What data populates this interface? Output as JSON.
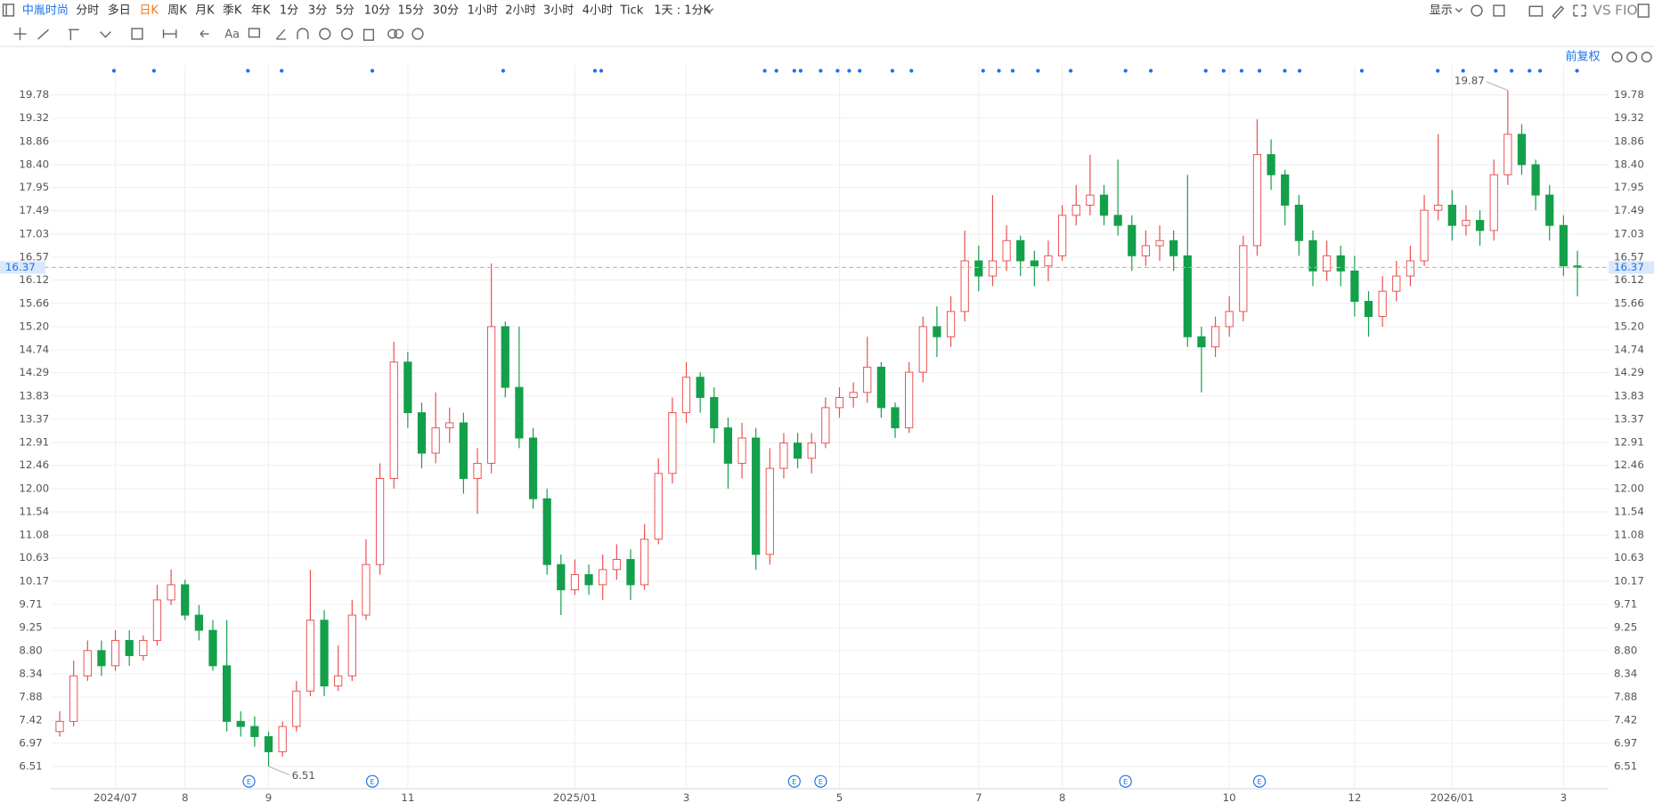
{
  "toolbar": {
    "symbol": "中胤时尚",
    "periods": [
      "分时",
      "多日",
      "日K",
      "周K",
      "月K",
      "季K",
      "年K",
      "1分",
      "3分",
      "5分",
      "10分",
      "15分",
      "30分",
      "1小时",
      "2小时",
      "3小时",
      "4小时",
      "Tick",
      "1天 : 1分K"
    ],
    "active_index": 2,
    "display": "显示",
    "compare": "VS",
    "font_tool": "Aa",
    "adjust": "前复权",
    "event_badge": "E"
  },
  "chart_data": {
    "type": "candlestick",
    "categories": [
      null,
      null,
      null,
      null,
      "2024/07",
      null,
      null,
      null,
      null,
      "8",
      null,
      null,
      null,
      null,
      null,
      "9",
      null,
      null,
      null,
      null,
      null,
      null,
      null,
      null,
      null,
      "11",
      null,
      null,
      null,
      null,
      null,
      null,
      null,
      null,
      null,
      null,
      null,
      "2025/01",
      null,
      null,
      null,
      null,
      null,
      null,
      null,
      "3",
      null,
      null,
      null,
      null,
      null,
      null,
      null,
      null,
      null,
      null,
      "5",
      null,
      null,
      null,
      null,
      null,
      null,
      null,
      null,
      null,
      "7",
      null,
      null,
      null,
      null,
      null,
      "8",
      null,
      null,
      null,
      null,
      null,
      null,
      null,
      null,
      null,
      null,
      null,
      "10",
      null,
      null,
      null,
      null,
      null,
      null,
      null,
      null,
      "12",
      null,
      null,
      null,
      null,
      null,
      null,
      "2026/01",
      null,
      null,
      null,
      null,
      null,
      null,
      null,
      "3",
      null
    ],
    "open": [
      7.2,
      7.4,
      8.3,
      8.8,
      8.5,
      9.0,
      8.7,
      9.0,
      9.8,
      10.1,
      9.5,
      9.2,
      8.5,
      7.4,
      7.3,
      7.1,
      6.8,
      7.3,
      8.0,
      9.4,
      8.1,
      8.3,
      9.5,
      10.5,
      12.2,
      14.5,
      13.5,
      12.7,
      13.2,
      13.3,
      12.2,
      12.5,
      15.2,
      14.0,
      13.0,
      11.8,
      10.5,
      10.0,
      10.3,
      10.1,
      10.4,
      10.6,
      10.1,
      11.0,
      12.3,
      13.5,
      14.2,
      13.8,
      13.2,
      12.5,
      13.0,
      10.7,
      12.4,
      12.9,
      12.6,
      12.9,
      13.6,
      13.8,
      13.9,
      14.4,
      13.6,
      13.2,
      14.3,
      15.2,
      15.0,
      15.5,
      16.5,
      16.2,
      16.5,
      16.9,
      16.5,
      16.4,
      16.6,
      17.4,
      17.6,
      17.8,
      17.4,
      17.2,
      16.6,
      16.8,
      16.9,
      16.6,
      15.0,
      14.8,
      15.2,
      15.5,
      16.8,
      18.6,
      18.2,
      17.6,
      16.9,
      16.3,
      16.6,
      16.3,
      15.7,
      15.4,
      15.9,
      16.2,
      16.5,
      17.5,
      17.6,
      17.2,
      17.3,
      17.1,
      18.2,
      19.0,
      18.4,
      17.8,
      17.2,
      16.4
    ],
    "high": [
      7.6,
      8.6,
      9.0,
      9.0,
      9.2,
      9.2,
      9.1,
      10.1,
      10.4,
      10.2,
      9.7,
      9.4,
      9.4,
      7.6,
      7.5,
      7.2,
      7.4,
      8.2,
      10.4,
      9.6,
      8.9,
      9.8,
      11.0,
      12.5,
      14.9,
      14.7,
      13.7,
      13.9,
      13.6,
      13.5,
      12.8,
      16.45,
      15.3,
      15.2,
      13.2,
      12.0,
      10.7,
      10.6,
      10.5,
      10.7,
      10.9,
      10.8,
      11.3,
      12.6,
      13.8,
      14.5,
      14.3,
      14.0,
      13.4,
      13.3,
      13.2,
      12.8,
      13.1,
      13.1,
      13.1,
      13.8,
      14.0,
      14.1,
      15.0,
      14.5,
      13.7,
      14.5,
      15.4,
      15.6,
      15.8,
      17.1,
      16.8,
      17.8,
      17.2,
      17.0,
      16.7,
      16.9,
      17.6,
      18.0,
      18.6,
      18.0,
      18.5,
      17.4,
      17.1,
      17.2,
      17.1,
      18.2,
      15.2,
      15.4,
      15.8,
      17.0,
      19.3,
      18.9,
      18.3,
      17.8,
      17.1,
      16.9,
      16.8,
      16.6,
      15.9,
      16.2,
      16.5,
      16.8,
      17.8,
      19.0,
      17.9,
      17.6,
      17.5,
      18.5,
      19.87,
      19.2,
      18.5,
      18.0,
      17.4,
      16.7
    ],
    "low": [
      7.1,
      7.3,
      8.2,
      8.3,
      8.4,
      8.5,
      8.6,
      8.9,
      9.7,
      9.4,
      9.0,
      8.4,
      7.2,
      7.1,
      6.9,
      6.51,
      6.7,
      7.2,
      7.9,
      7.9,
      8.0,
      8.2,
      9.4,
      10.3,
      12.0,
      13.2,
      12.4,
      12.5,
      12.9,
      11.9,
      11.5,
      12.3,
      13.8,
      12.8,
      11.6,
      10.3,
      9.5,
      9.9,
      9.9,
      9.8,
      10.2,
      9.8,
      10.0,
      10.9,
      12.1,
      13.3,
      13.5,
      12.9,
      12.0,
      12.2,
      10.4,
      10.5,
      12.2,
      12.4,
      12.3,
      12.8,
      13.4,
      13.6,
      13.7,
      13.4,
      13.0,
      13.1,
      14.1,
      14.6,
      14.8,
      15.3,
      15.9,
      16.0,
      16.3,
      16.2,
      16.0,
      16.1,
      16.5,
      17.2,
      17.4,
      17.2,
      17.0,
      16.3,
      16.4,
      16.5,
      16.3,
      14.8,
      13.9,
      14.6,
      15.0,
      15.3,
      16.6,
      17.9,
      17.2,
      16.6,
      16.0,
      16.1,
      16.0,
      15.4,
      15.0,
      15.2,
      15.7,
      16.0,
      16.4,
      17.3,
      16.9,
      17.0,
      16.8,
      16.9,
      18.0,
      18.2,
      17.5,
      16.9,
      16.2,
      15.8
    ],
    "close": [
      7.4,
      8.3,
      8.8,
      8.5,
      9.0,
      8.7,
      9.0,
      9.8,
      10.1,
      9.5,
      9.2,
      8.5,
      7.4,
      7.3,
      7.1,
      6.8,
      7.3,
      8.0,
      9.4,
      8.1,
      8.3,
      9.5,
      10.5,
      12.2,
      14.5,
      13.5,
      12.7,
      13.2,
      13.3,
      12.2,
      12.5,
      15.2,
      14.0,
      13.0,
      11.8,
      10.5,
      10.0,
      10.3,
      10.1,
      10.4,
      10.6,
      10.1,
      11.0,
      12.3,
      13.5,
      14.2,
      13.8,
      13.2,
      12.5,
      13.0,
      10.7,
      12.4,
      12.9,
      12.6,
      12.9,
      13.6,
      13.8,
      13.9,
      14.4,
      13.6,
      13.2,
      14.3,
      15.2,
      15.0,
      15.5,
      16.5,
      16.2,
      16.5,
      16.9,
      16.5,
      16.4,
      16.6,
      17.4,
      17.6,
      17.8,
      17.4,
      17.2,
      16.6,
      16.8,
      16.9,
      16.6,
      15.0,
      14.8,
      15.2,
      15.5,
      16.8,
      18.6,
      18.2,
      17.6,
      16.9,
      16.3,
      16.6,
      16.3,
      15.7,
      15.4,
      15.9,
      16.2,
      16.5,
      17.5,
      17.6,
      17.2,
      17.3,
      17.1,
      18.2,
      19.0,
      18.4,
      17.8,
      17.2,
      16.4,
      16.37
    ],
    "up_color": "#eb4d4d",
    "down_color": "#14a04a",
    "last_price_color": "#f2a46c",
    "ylim": [
      6.07,
      20.36
    ],
    "yticks": [
      6.51,
      6.97,
      7.42,
      7.88,
      8.34,
      {
        "value": 8.8,
        "label": "8.80"
      },
      9.25,
      9.71,
      10.17,
      10.63,
      11.08,
      11.54,
      {
        "value": 12,
        "label": "12.00"
      },
      12.46,
      12.91,
      13.37,
      13.83,
      14.29,
      14.74,
      {
        "value": 15.2,
        "label": "15.20"
      },
      15.66,
      16.12,
      16.57,
      17.03,
      17.49,
      17.95,
      {
        "value": 18.4,
        "label": "18.40"
      },
      18.86,
      19.32,
      19.78
    ],
    "grid": true
  }
}
